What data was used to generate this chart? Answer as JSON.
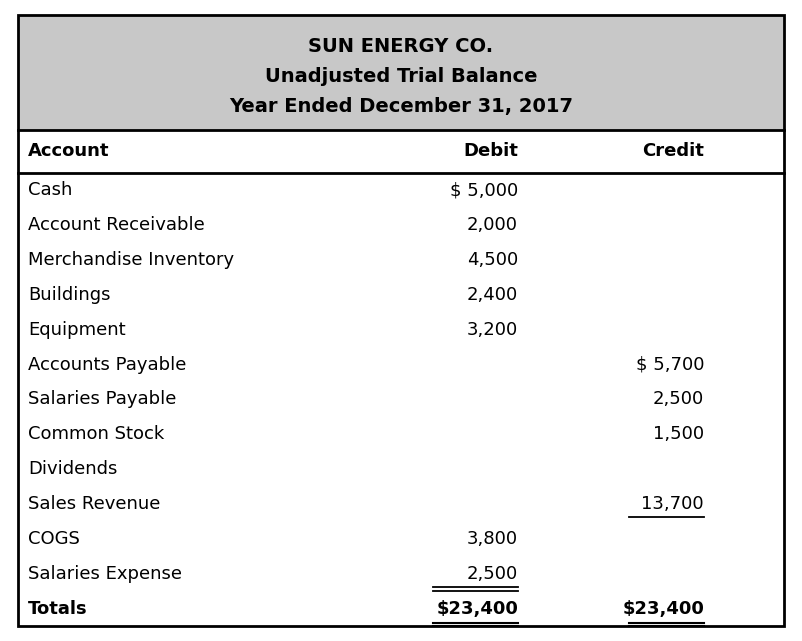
{
  "title_lines": [
    "SUN ENERGY CO.",
    "Unadjusted Trial Balance",
    "Year Ended December 31, 2017"
  ],
  "header_bg": "#c8c8c8",
  "body_bg": "#ffffff",
  "header_font_size": 14,
  "col_headers": [
    "Account",
    "Debit",
    "Credit"
  ],
  "rows": [
    {
      "account": "Cash",
      "debit": "$ 5,000",
      "credit": "",
      "debit_ul": false,
      "credit_ul": false
    },
    {
      "account": "Account Receivable",
      "debit": "2,000",
      "credit": "",
      "debit_ul": false,
      "credit_ul": false
    },
    {
      "account": "Merchandise Inventory",
      "debit": "4,500",
      "credit": "",
      "debit_ul": false,
      "credit_ul": false
    },
    {
      "account": "Buildings",
      "debit": "2,400",
      "credit": "",
      "debit_ul": false,
      "credit_ul": false
    },
    {
      "account": "Equipment",
      "debit": "3,200",
      "credit": "",
      "debit_ul": false,
      "credit_ul": false
    },
    {
      "account": "Accounts Payable",
      "debit": "",
      "credit": "$ 5,700",
      "debit_ul": false,
      "credit_ul": false
    },
    {
      "account": "Salaries Payable",
      "debit": "",
      "credit": "2,500",
      "debit_ul": false,
      "credit_ul": false
    },
    {
      "account": "Common Stock",
      "debit": "",
      "credit": "1,500",
      "debit_ul": false,
      "credit_ul": false
    },
    {
      "account": "Dividends",
      "debit": "",
      "credit": "",
      "debit_ul": false,
      "credit_ul": false
    },
    {
      "account": "Sales Revenue",
      "debit": "",
      "credit": "13,700",
      "debit_ul": false,
      "credit_ul": true
    },
    {
      "account": "COGS",
      "debit": "3,800",
      "credit": "",
      "debit_ul": false,
      "credit_ul": false
    },
    {
      "account": "Salaries Expense",
      "debit": "2,500",
      "credit": "",
      "debit_ul": true,
      "credit_ul": false
    }
  ],
  "totals_row": {
    "account": "Totals",
    "debit": "$23,400",
    "credit": "$23,400"
  },
  "line_color": "#000000",
  "text_color": "#000000",
  "body_font_size": 13
}
